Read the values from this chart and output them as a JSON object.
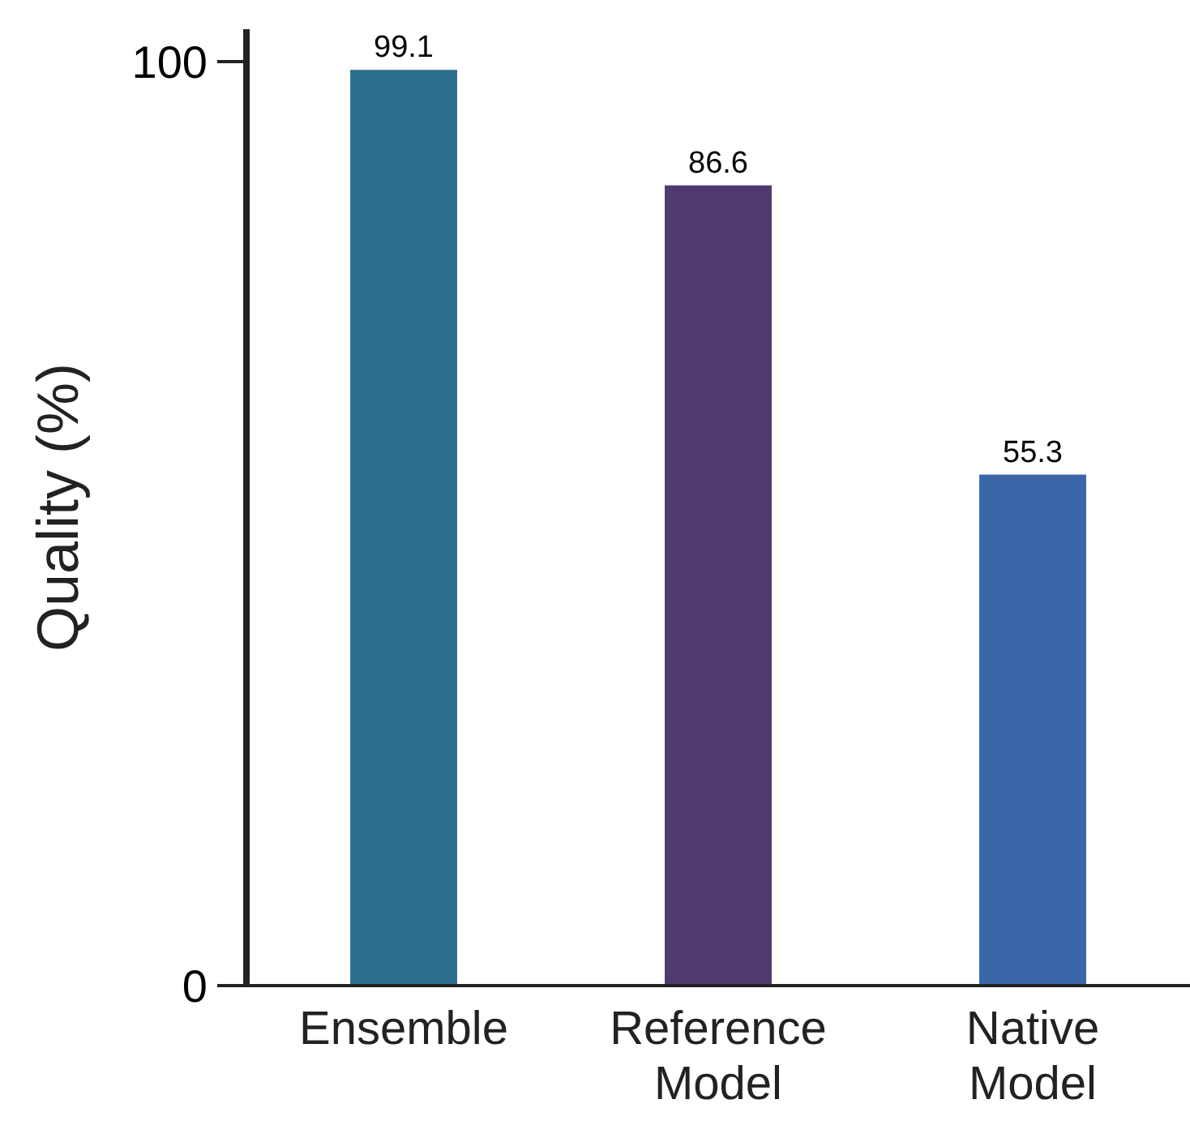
{
  "chart_data": {
    "type": "bar",
    "ylabel": "Quality (%)",
    "categories": [
      "Ensemble",
      "Reference Model",
      "Native Model"
    ],
    "values": [
      99.1,
      86.6,
      55.3
    ],
    "colors": [
      "#2e6f8e",
      "#4f3a70",
      "#3b67a8"
    ],
    "ylim": [
      0,
      103.5
    ],
    "yticks": [
      0,
      100
    ],
    "data_labels": true
  }
}
